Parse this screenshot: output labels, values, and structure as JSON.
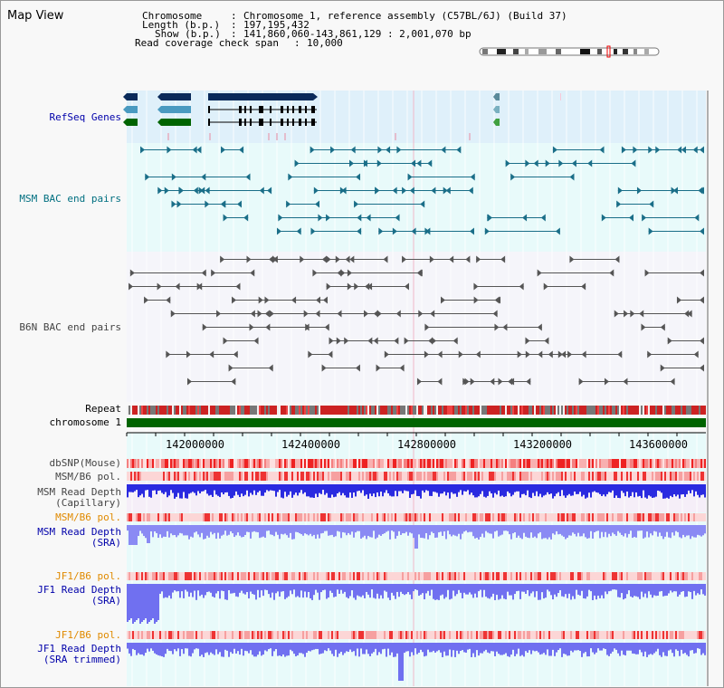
{
  "header": {
    "title": "Map View",
    "info_rows": [
      {
        "key": "Chromosome",
        "value": "Chromosome 1, reference assembly (C57BL/6J) (Build 37)"
      },
      {
        "key": "Length (b.p.)",
        "value": "197,195,432"
      },
      {
        "key": "Show (b.p.)",
        "value": "141,860,060-143,861,129 : 2,001,070 bp"
      },
      {
        "key": "Read coverage check span",
        "value": "10,000"
      }
    ]
  },
  "tracks": {
    "refseq": "RefSeq Genes",
    "msm_bac": "MSM BAC end pairs",
    "b6n_bac": "B6N BAC end pairs",
    "repeat": "Repeat",
    "chromosome": "chromosome 1",
    "dbsnp": "dbSNP(Mouse)",
    "msm_b6_pol_1": "MSM/B6 pol.",
    "msm_depth_cap_1": "MSM Read Depth",
    "msm_depth_cap_2": "(Capillary)",
    "msm_b6_pol_2": "MSM/B6 pol.",
    "msm_depth_sra_1": "MSM Read Depth",
    "msm_depth_sra_2": "(SRA)",
    "jf1_b6_pol_1": "JF1/B6 pol.",
    "jf1_depth_sra_1": "JF1 Read Depth",
    "jf1_depth_sra_2": "(SRA)",
    "jf1_b6_pol_2": "JF1/B6 pol.",
    "jf1_depth_trim_1": "JF1 Read Depth",
    "jf1_depth_trim_2": "(SRA trimmed)"
  },
  "axis": {
    "ticks": [
      "142000000",
      "142400000",
      "142800000",
      "143200000",
      "143600000"
    ]
  },
  "colors": {
    "refseq_bg": "#dff0fa",
    "msm_bg": "#e8fafa",
    "b6n_bg": "#f5f5fa",
    "refseq_dark": "#0a2a5a",
    "refseq_light": "#4a9ac0",
    "refseq_green": "#006400",
    "msm_line": "#1a6e88",
    "b6n_line": "#555555",
    "chromosome_bar": "#006400",
    "depth_blue": "#2020e0",
    "depth_light": "#8080f0"
  }
}
